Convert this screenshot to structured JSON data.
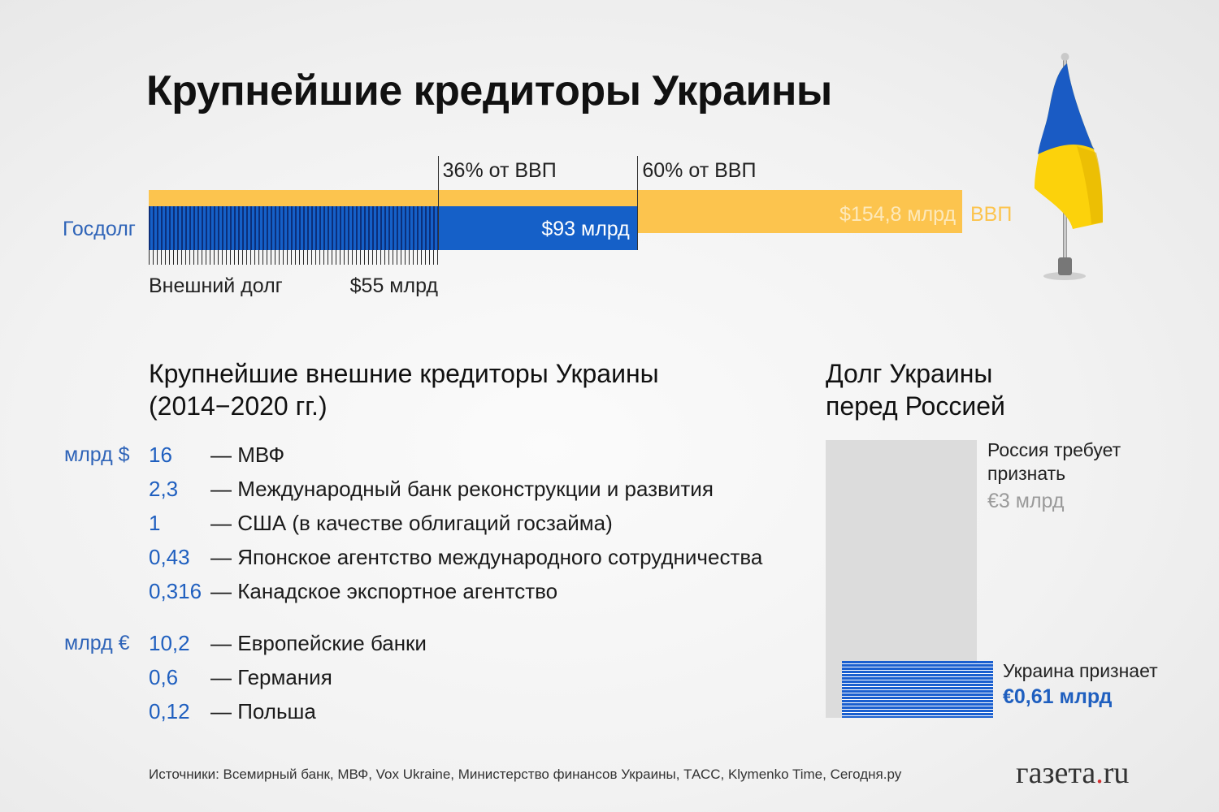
{
  "title": "Крупнейшие кредиторы Украины",
  "chart_data": [
    {
      "type": "bar",
      "orientation": "horizontal",
      "series": [
        {
          "name": "ВВП",
          "value": 154.8,
          "label": "$154,8 млрд"
        },
        {
          "name": "Госдолг",
          "value": 93,
          "label": "$93 млрд"
        },
        {
          "name": "Внешний долг",
          "value": 55,
          "label": "$55 млрд"
        }
      ],
      "reference_lines": [
        {
          "label": "36% от ВВП",
          "value": 55
        },
        {
          "label": "60% от ВВП",
          "value": 93
        }
      ],
      "xlim": [
        0,
        154.8
      ]
    },
    {
      "type": "table",
      "title_line1": "Крупнейшие внешние кредиторы Украины",
      "title_line2": "(2014−2020 гг.)",
      "groups": [
        {
          "unit": "млрд $",
          "rows": [
            {
              "value": "16",
              "name": "— МВФ"
            },
            {
              "value": "2,3",
              "name": "— Международный банк реконструкции и развития"
            },
            {
              "value": "1",
              "name": "— США (в качестве облигаций госзайма)"
            },
            {
              "value": "0,43",
              "name": "— Японское агентство международного сотрудничества"
            },
            {
              "value": "0,316",
              "name": "— Канадское экспортное агентство"
            }
          ]
        },
        {
          "unit": "млрд €",
          "rows": [
            {
              "value": "10,2",
              "name": "— Европейские банки"
            },
            {
              "value": "0,6",
              "name": "— Германия"
            },
            {
              "value": "0,12",
              "name": "— Польша"
            }
          ]
        }
      ]
    },
    {
      "type": "bar",
      "title_line1": "Долг Украины",
      "title_line2": "перед Россией",
      "series": [
        {
          "name_line1": "Россия требует",
          "name_line2": "признать",
          "value": 3,
          "label": "€3 млрд"
        },
        {
          "name": "Украина признает",
          "value": 0.61,
          "label": "€0,61 млрд"
        }
      ],
      "ylim": [
        0,
        3
      ]
    }
  ],
  "sources": "Источники: Всемирный банк, МВФ, Vox Ukraine, Министерство финансов Украины, ТАСС, Klymenko Time, Сегодня.ру",
  "logo": {
    "main": "газета",
    "dot": ".",
    "suffix": "ru"
  },
  "colors": {
    "gdp": "#fcc44e",
    "debt": "#1560c8",
    "external_debt_hatch": "#0c2f7a",
    "russia_claim": "#dcdcdc",
    "ukraine_admits": "#1a5fcf"
  }
}
